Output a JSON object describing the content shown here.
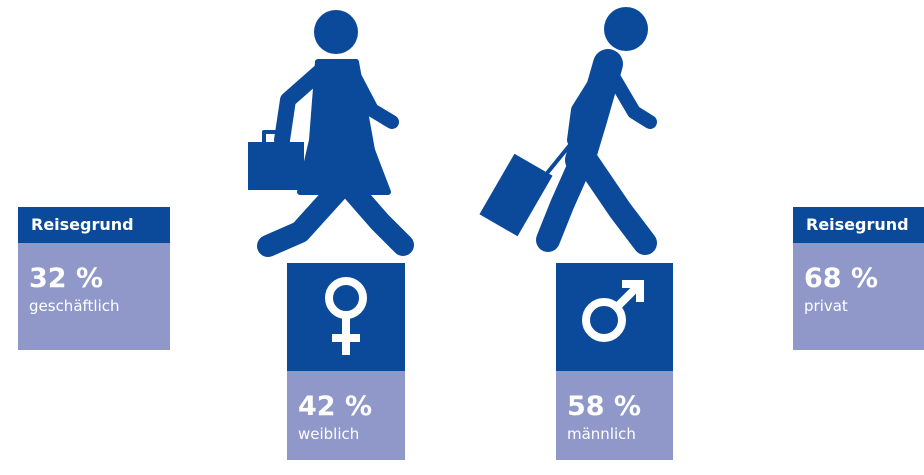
{
  "panels": [
    {
      "header": "Reisegrund",
      "value": "32 %",
      "label": "geschäftlich"
    },
    {
      "header": "Reisegrund",
      "value": "68 %",
      "label": "privat"
    }
  ],
  "gender": [
    {
      "value": "42 %",
      "label": "weiblich"
    },
    {
      "value": "58 %",
      "label": "männlich"
    }
  ]
}
